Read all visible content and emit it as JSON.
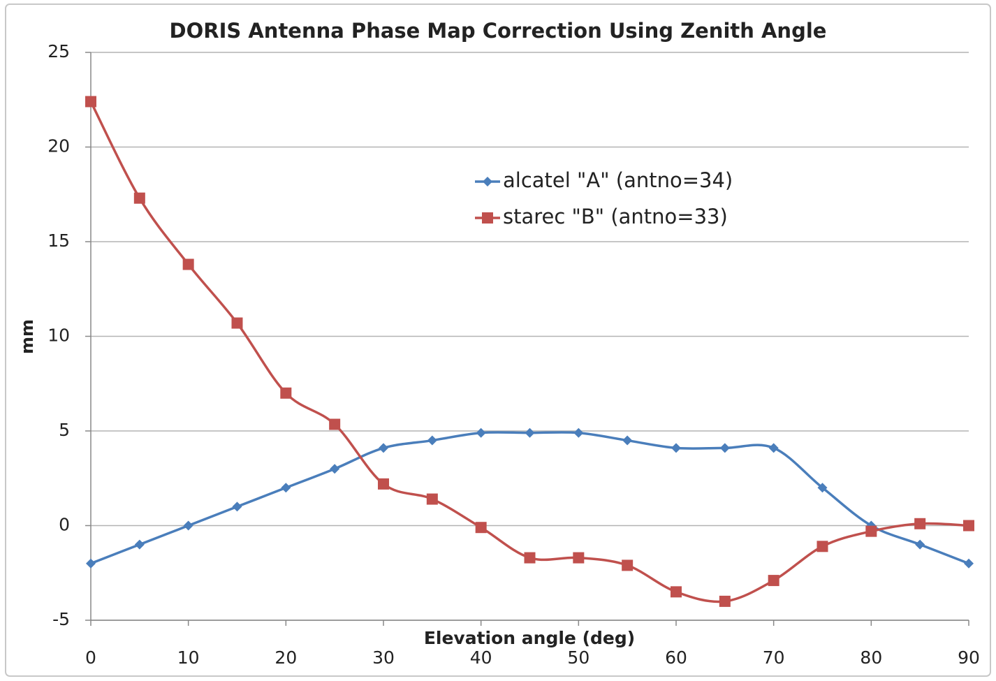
{
  "chart_data": {
    "type": "line",
    "title": "DORIS Antenna Phase Map Correction Using Zenith Angle",
    "x_label": "Elevation angle (deg)",
    "y_label": "mm",
    "x": [
      0,
      5,
      10,
      15,
      20,
      25,
      30,
      35,
      40,
      45,
      50,
      55,
      60,
      65,
      70,
      75,
      80,
      85,
      90
    ],
    "series": [
      {
        "name": "alcatel \"A\" (antno=34)",
        "color": "#4a7ebb",
        "marker": "diamond",
        "values": [
          -2,
          -1,
          0,
          1,
          2,
          3,
          4.1,
          4.5,
          4.9,
          4.9,
          4.9,
          4.5,
          4.1,
          4.1,
          4.1,
          2,
          0,
          -1,
          -2
        ]
      },
      {
        "name": "starec \"B\" (antno=33)",
        "color": "#c0504d",
        "marker": "square",
        "values": [
          22.4,
          17.3,
          13.8,
          10.7,
          7,
          5.35,
          2.2,
          1.4,
          -0.1,
          -1.7,
          -1.7,
          -2.1,
          -3.5,
          -4,
          -2.9,
          -1.1,
          -0.3,
          0.1,
          0
        ]
      }
    ],
    "xlim": [
      0,
      90
    ],
    "xticks": [
      0,
      10,
      20,
      30,
      40,
      50,
      60,
      70,
      80,
      90
    ],
    "ylim": [
      -5,
      25
    ],
    "yticks": [
      -5,
      0,
      5,
      10,
      15,
      20,
      25
    ],
    "grid": true,
    "smooth": true,
    "legend": "upper center"
  }
}
